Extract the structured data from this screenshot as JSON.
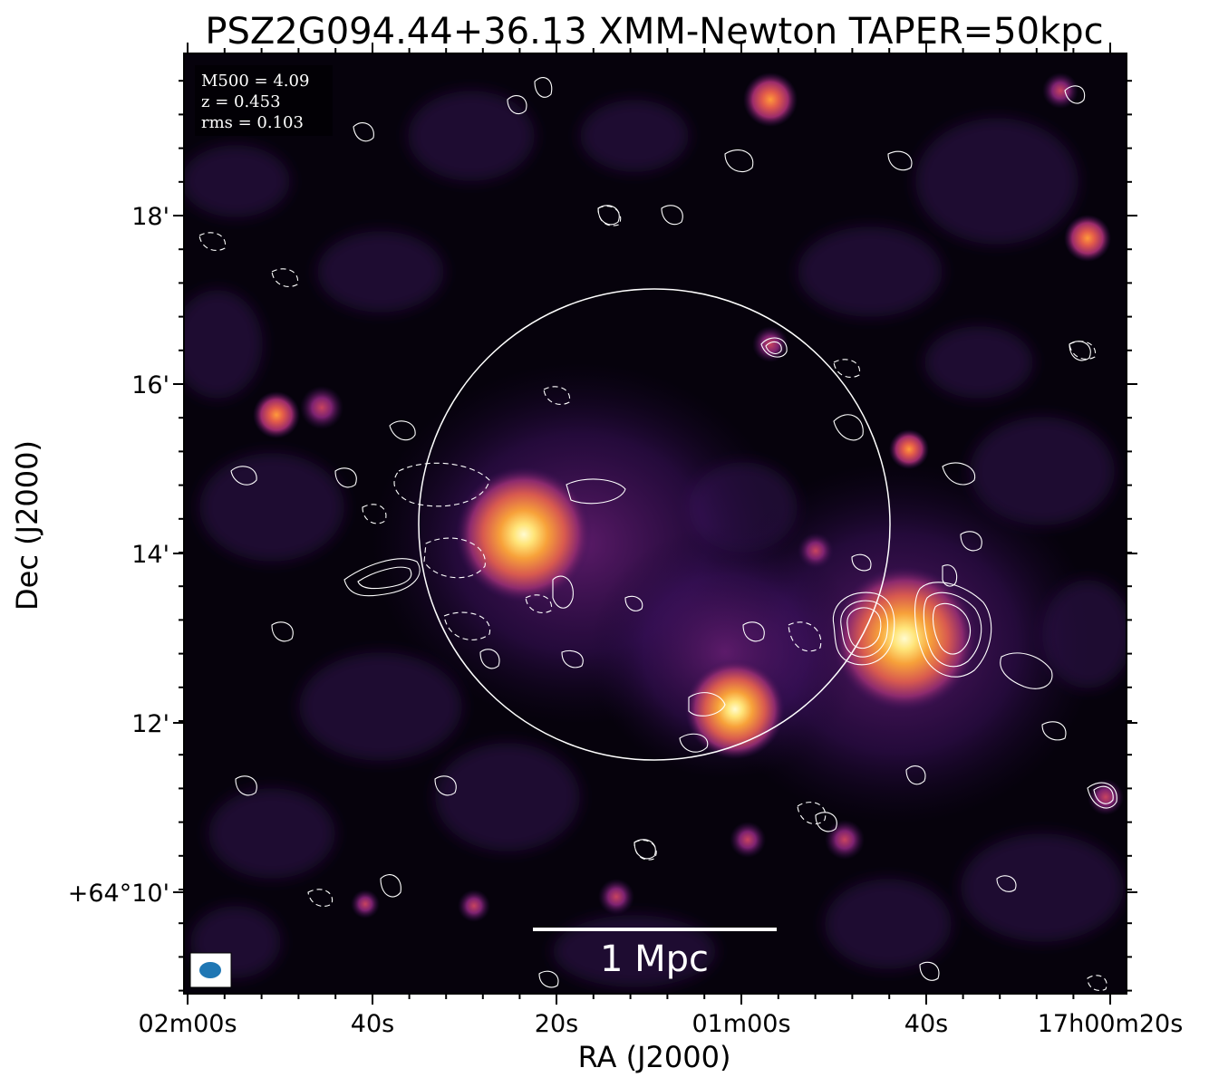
{
  "title": "PSZ2G094.44+36.13 XMM-Newton TAPER=50kpc",
  "axes": {
    "xlabel": "RA (J2000)",
    "ylabel": "Dec (J2000)",
    "x_ticks": [
      "02m00s",
      "40s",
      "20s",
      "01m00s",
      "40s",
      "17h00m20s"
    ],
    "y_ticks": [
      "18'",
      "16'",
      "14'",
      "12'",
      "+64°10'"
    ]
  },
  "info": {
    "m500": "M500 = 4.09",
    "z": "z = 0.453",
    "rms": "rms = 0.103"
  },
  "scalebar": {
    "label": "1 Mpc"
  },
  "colors": {
    "background": "#050208",
    "diffuse": "#4a1668",
    "source_core": "#fff2a0",
    "source_mid": "#f58a2a",
    "source_outer": "#b3346a",
    "contour": "#ffffff",
    "beam": "#1f77b4"
  }
}
